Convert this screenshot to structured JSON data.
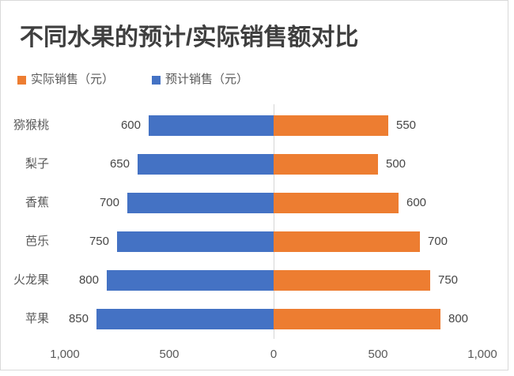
{
  "chart": {
    "title": "不同水果的预计/实际销售额对比"
  },
  "chart_data": {
    "type": "bar",
    "variant": "diverging-horizontal-tornado",
    "title": "不同水果的预计/实际销售额对比",
    "categories": [
      "猕猴桃",
      "梨子",
      "香蕉",
      "芭乐",
      "火龙果",
      "苹果"
    ],
    "series": [
      {
        "name": "实际销售（元）",
        "side": "right",
        "color": "#ED7D31",
        "values": [
          550,
          500,
          600,
          700,
          750,
          800
        ]
      },
      {
        "name": "预计销售（元）",
        "side": "left",
        "color": "#4472C4",
        "values": [
          600,
          650,
          700,
          750,
          800,
          850
        ]
      }
    ],
    "data_labels_shown": true,
    "x_ticks": [
      {
        "label": "1,000",
        "value": -1000
      },
      {
        "label": "500",
        "value": -500
      },
      {
        "label": "0",
        "value": 0
      },
      {
        "label": "500",
        "value": 500
      },
      {
        "label": "1,000",
        "value": 1000
      }
    ],
    "xlabel": "",
    "ylabel": "",
    "xlim": [
      -1000,
      1000
    ],
    "grid": "center-axis-only",
    "legend_position": "top-left",
    "colors": {
      "actual_series": "#ED7D31",
      "forecast_series": "#4472C4",
      "gridline": "#D6D6D6",
      "frame_border": "#D9D9D9",
      "title_text": "#3F3F3F",
      "body_text": "#595959"
    }
  }
}
